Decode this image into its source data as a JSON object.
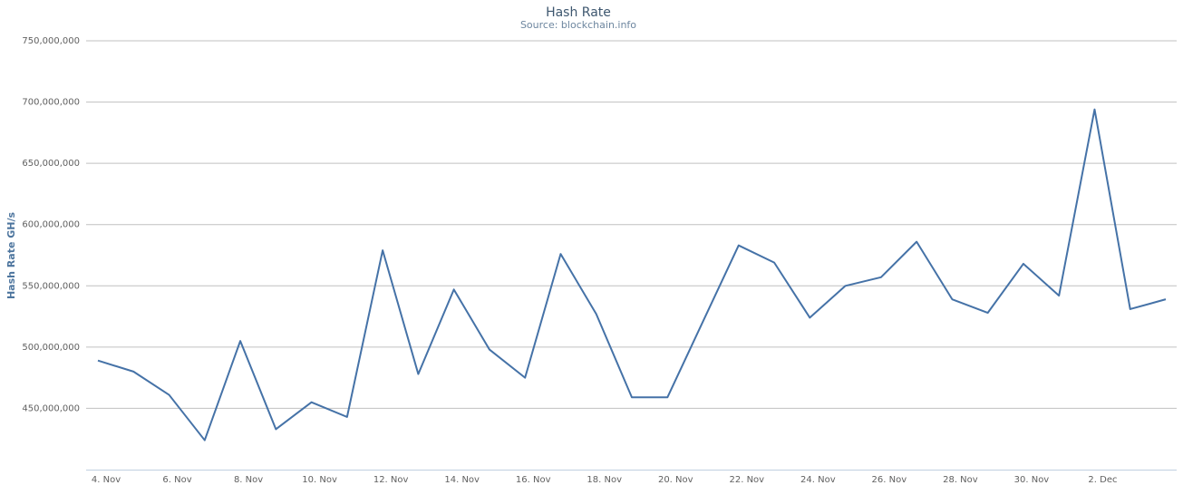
{
  "chart_data": {
    "type": "line",
    "title": "Hash Rate",
    "subtitle": "Source: blockchain.info",
    "y_axis_label": "Hash Rate GH/s",
    "categories": [
      "4. Nov",
      null,
      "6. Nov",
      null,
      "8. Nov",
      null,
      "10. Nov",
      null,
      "12. Nov",
      null,
      "14. Nov",
      null,
      "16. Nov",
      null,
      "18. Nov",
      null,
      "20. Nov",
      null,
      "22. Nov",
      null,
      "24. Nov",
      null,
      "26. Nov",
      null,
      "28. Nov",
      null,
      "30. Nov",
      null,
      "2. Dec",
      null,
      null
    ],
    "series": [
      {
        "name": "Hash Rate",
        "color": "#4572a7",
        "values": [
          489000000,
          480000000,
          461000000,
          424000000,
          505000000,
          433000000,
          455000000,
          443000000,
          579000000,
          478000000,
          547000000,
          498000000,
          475000000,
          576000000,
          527000000,
          459000000,
          459000000,
          521000000,
          583000000,
          569000000,
          524000000,
          550000000,
          557000000,
          586000000,
          539000000,
          528000000,
          568000000,
          542000000,
          694000000,
          531000000,
          539000000
        ]
      }
    ],
    "ylim": [
      400000000,
      750000000
    ],
    "yticks": [
      {
        "value": 450000000,
        "label": "450,000,000"
      },
      {
        "value": 500000000,
        "label": "500,000,000"
      },
      {
        "value": 550000000,
        "label": "550,000,000"
      },
      {
        "value": 600000000,
        "label": "600,000,000"
      },
      {
        "value": 650000000,
        "label": "650,000,000"
      },
      {
        "value": 700000000,
        "label": "700,000,000"
      },
      {
        "value": 750000000,
        "label": "750,000,000"
      }
    ],
    "grid": true
  }
}
